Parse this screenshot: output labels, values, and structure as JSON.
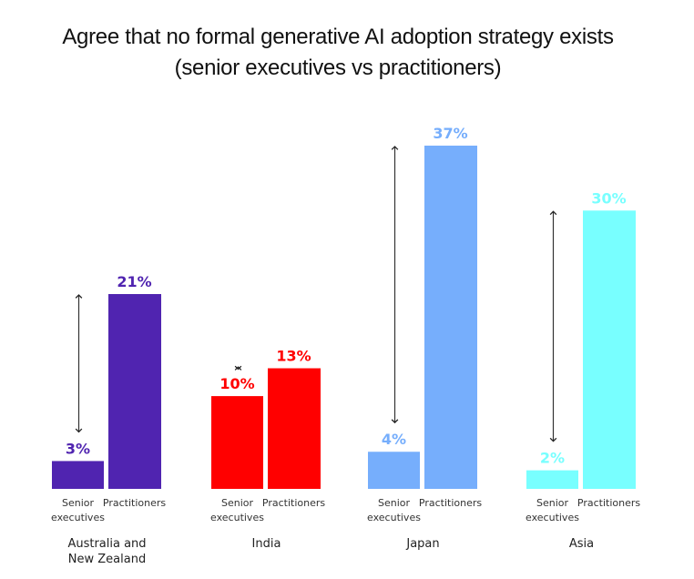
{
  "chart_data": {
    "type": "bar",
    "title": "Agree that no formal generative AI adoption strategy exists",
    "subtitle": "(senior executives vs practitioners)",
    "xlabel": "",
    "ylabel": "",
    "ylim": [
      0,
      40
    ],
    "grid": false,
    "legend": "none",
    "value_suffix": "%",
    "bar_labels": [
      "Senior executives",
      "Practitioners"
    ],
    "groups": [
      {
        "name": "Australia and New Zealand",
        "name_lines": [
          "Australia and",
          "New Zealand"
        ],
        "color": "#5024b0",
        "senior_executives": 3,
        "practitioners": 21
      },
      {
        "name": "India",
        "name_lines": [
          "India"
        ],
        "color": "#ff0000",
        "senior_executives": 10,
        "practitioners": 13
      },
      {
        "name": "Japan",
        "name_lines": [
          "Japan"
        ],
        "color": "#76aefc",
        "senior_executives": 4,
        "practitioners": 37
      },
      {
        "name": "Asia",
        "name_lines": [
          "Asia"
        ],
        "color": "#78ffff",
        "senior_executives": 2,
        "practitioners": 30
      }
    ],
    "annotations": "Double-headed arrows mark the gap between senior executives and practitioners in each group"
  }
}
